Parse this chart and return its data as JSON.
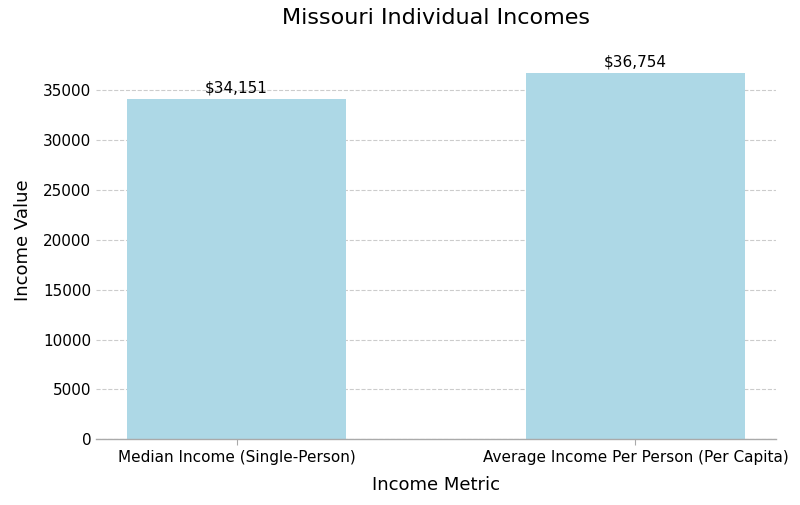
{
  "title": "Missouri Individual Incomes",
  "xlabel": "Income Metric",
  "ylabel": "Income Value",
  "categories": [
    "Median Income (Single-Person)",
    "Average Income Per Person (Per Capita)"
  ],
  "values": [
    34151,
    36754
  ],
  "bar_color": "#add8e6",
  "bar_edgecolor": "none",
  "label_format": [
    "$34,151",
    "$36,754"
  ],
  "ylim": [
    0,
    40000
  ],
  "yticks": [
    0,
    5000,
    10000,
    15000,
    20000,
    25000,
    30000,
    35000
  ],
  "grid_color": "#cccccc",
  "title_fontsize": 16,
  "axis_label_fontsize": 13,
  "tick_fontsize": 11,
  "annotation_fontsize": 11,
  "background_color": "#ffffff",
  "bar_width": 0.55
}
